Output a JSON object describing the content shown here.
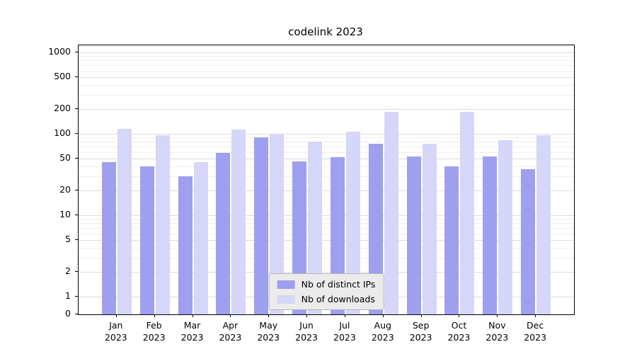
{
  "chart_data": {
    "type": "bar",
    "title": "codelink 2023",
    "yscale": "symlog",
    "grid": true,
    "legend_position": "lower center",
    "yticks": [
      0,
      1,
      2,
      5,
      10,
      20,
      50,
      100,
      200,
      500,
      1000
    ],
    "ylim": [
      0,
      1500
    ],
    "year": "2023",
    "categories": [
      {
        "month": "Jan",
        "year": "2023"
      },
      {
        "month": "Feb",
        "year": "2023"
      },
      {
        "month": "Mar",
        "year": "2023"
      },
      {
        "month": "Apr",
        "year": "2023"
      },
      {
        "month": "May",
        "year": "2023"
      },
      {
        "month": "Jun",
        "year": "2023"
      },
      {
        "month": "Jul",
        "year": "2023"
      },
      {
        "month": "Aug",
        "year": "2023"
      },
      {
        "month": "Sep",
        "year": "2023"
      },
      {
        "month": "Oct",
        "year": "2023"
      },
      {
        "month": "Nov",
        "year": "2023"
      },
      {
        "month": "Dec",
        "year": "2023"
      }
    ],
    "series": [
      {
        "name": "Nb of distinct IPs",
        "color": "#9f9fef",
        "values": [
          45,
          40,
          30,
          58,
          90,
          46,
          52,
          75,
          53,
          40,
          53,
          37
        ]
      },
      {
        "name": "Nb of downloads",
        "color": "#d6d6f8",
        "values": [
          115,
          97,
          45,
          112,
          100,
          80,
          107,
          185,
          76,
          185,
          84,
          97
        ]
      }
    ]
  }
}
